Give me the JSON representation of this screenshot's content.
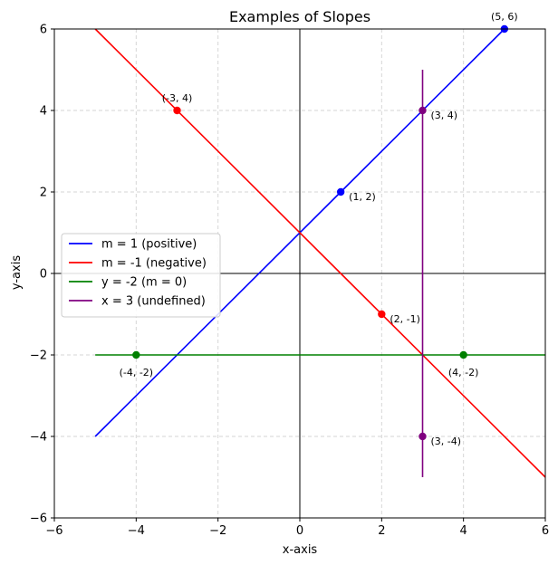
{
  "chart_data": {
    "type": "line",
    "title": "Examples of Slopes",
    "xlabel": "x-axis",
    "ylabel": "y-axis",
    "xlim": [
      -6,
      6
    ],
    "ylim": [
      -6,
      6
    ],
    "xticks": [
      -6,
      -4,
      -2,
      0,
      2,
      4,
      6
    ],
    "yticks": [
      -6,
      -4,
      -2,
      0,
      2,
      4,
      6
    ],
    "grid": true,
    "legend_position": "center-left",
    "series": [
      {
        "name": "m = 1 (positive)",
        "color": "#0000ff",
        "line": [
          [
            -5,
            -4
          ],
          [
            5,
            6
          ]
        ],
        "points": [
          {
            "x": 1,
            "y": 2,
            "label": "(1, 2)",
            "anchor": "right-below"
          },
          {
            "x": 5,
            "y": 6,
            "label": "(5, 6)",
            "anchor": "above"
          }
        ]
      },
      {
        "name": "m = -1 (negative)",
        "color": "#ff0000",
        "line": [
          [
            -5,
            6
          ],
          [
            6,
            -5
          ]
        ],
        "points": [
          {
            "x": -3,
            "y": 4,
            "label": "(-3, 4)",
            "anchor": "above"
          },
          {
            "x": 2,
            "y": -1,
            "label": "(2, -1)",
            "anchor": "right-below"
          }
        ]
      },
      {
        "name": "y = -2 (m = 0)",
        "color": "#008000",
        "line": [
          [
            -5,
            -2
          ],
          [
            6,
            -2
          ]
        ],
        "points": [
          {
            "x": -4,
            "y": -2,
            "label": "(-4, -2)",
            "anchor": "below"
          },
          {
            "x": 4,
            "y": -2,
            "label": "(4, -2)",
            "anchor": "below"
          }
        ]
      },
      {
        "name": "x = 3 (undefined)",
        "color": "#800080",
        "line": [
          [
            3,
            -5
          ],
          [
            3,
            5
          ]
        ],
        "points": [
          {
            "x": 3,
            "y": 4,
            "label": "(3, 4)",
            "anchor": "right-below"
          },
          {
            "x": 3,
            "y": -4,
            "label": "(3, -4)",
            "anchor": "right-below"
          }
        ]
      }
    ]
  }
}
